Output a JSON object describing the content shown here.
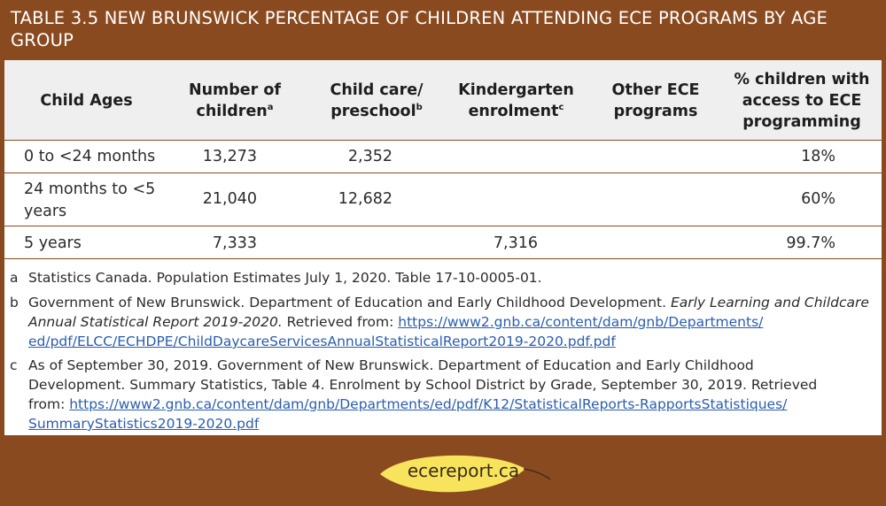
{
  "title": "TABLE 3.5 NEW BRUNSWICK PERCENTAGE OF CHILDREN ATTENDING ECE PROGRAMS BY AGE GROUP",
  "table": {
    "headers": {
      "ages": "Child Ages",
      "children_l1": "Number of",
      "children_l2": "children",
      "children_sup": "a",
      "childcare_l1": "Child care/",
      "childcare_l2": "preschool",
      "childcare_sup": "b",
      "kinder_l1": "Kindergarten",
      "kinder_l2": "enrolment",
      "kinder_sup": "c",
      "other_l1": "Other ECE",
      "other_l2": "programs",
      "access_l1": "% children with",
      "access_l2": "access to ECE",
      "access_l3": "programming"
    },
    "rows": [
      {
        "age_l1": "0 to <24 months",
        "age_l2": "",
        "children": "13,273",
        "childcare": "2,352",
        "kinder": "",
        "other": "",
        "access": "18%"
      },
      {
        "age_l1": "24 months to <5",
        "age_l2": "years",
        "children": "21,040",
        "childcare": "12,682",
        "kinder": "",
        "other": "",
        "access": "60%"
      },
      {
        "age_l1": "5 years",
        "age_l2": "",
        "children": "7,333",
        "childcare": "",
        "kinder": "7,316",
        "other": "",
        "access": "99.7%"
      }
    ]
  },
  "notes": {
    "a": {
      "mark": "a",
      "text": "Statistics Canada. Population Estimates July 1, 2020. Table 17-10-0005-01."
    },
    "b": {
      "mark": "b",
      "text1": "Government of New Brunswick. Department of Education and Early Childhood Development. ",
      "italic": "Early Learning and Childcare Annual Statistical Report 2019-2020.",
      "text2": " Retrieved from: ",
      "link_l1": "https://www2.gnb.ca/content/dam/gnb/Departments/",
      "link_l2": "ed/pdf/ELCC/ECHDPE/ChildDaycareServicesAnnualStatisticalReport2019-2020.pdf.pdf"
    },
    "c": {
      "mark": "c",
      "text_l1": "As of September 30, 2019. Government of New Brunswick. Department of Education and Early Childhood",
      "text_l2": "Development. Summary Statistics, Table 4. Enrolment by School District by Grade, September 30, 2019. Retrieved",
      "text_l3": "from: ",
      "link_l1": "https://www2.gnb.ca/content/dam/gnb/Departments/ed/pdf/K12/StatisticalReports-RapportsStatistiques/",
      "link_l2": "SummaryStatistics2019-2020.pdf"
    }
  },
  "footer": {
    "logo_text": "ecereport.ca"
  },
  "colors": {
    "brand_brown": "#8a4a1f",
    "leaf_yellow": "#f7e45c",
    "link_blue": "#2a5db0",
    "header_grey": "#f0efef"
  }
}
